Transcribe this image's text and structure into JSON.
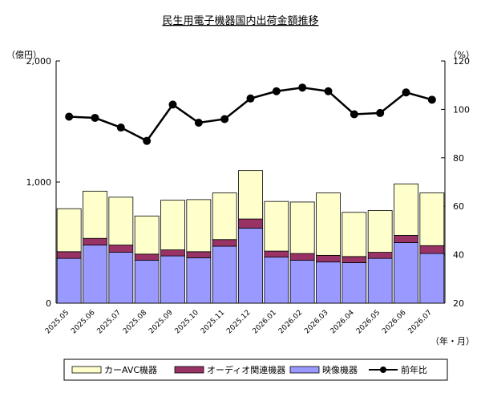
{
  "chart_data": {
    "type": "bar",
    "title": "民生用電子機器国内出荷金額推移",
    "y_left_unit": "（億円）",
    "y_right_unit": "（%）",
    "x_unit": "（年・月）",
    "categories": [
      "2025.05",
      "2025.06",
      "2025.07",
      "2025.08",
      "2025.09",
      "2025.10",
      "2025.11",
      "2025.12",
      "2026.01",
      "2026.02",
      "2026.03",
      "2026.04",
      "2026.05",
      "2026.06",
      "2026.07"
    ],
    "stacked": true,
    "ylim_left": [
      0,
      2000
    ],
    "yticks_left": [
      "0",
      "1,000",
      "2,000"
    ],
    "ylim_right": [
      20,
      120
    ],
    "yticks_right": [
      "20",
      "40",
      "60",
      "80",
      "100",
      "120"
    ],
    "series": [
      {
        "name": "映像機器",
        "kind": "bar",
        "color": "#9999ff",
        "values": [
          370,
          480,
          420,
          355,
          390,
          375,
          470,
          620,
          380,
          355,
          340,
          335,
          370,
          500,
          410
        ]
      },
      {
        "name": "オーディオ関連機器",
        "kind": "bar",
        "color": "#993366",
        "values": [
          55,
          55,
          60,
          50,
          50,
          50,
          55,
          75,
          50,
          55,
          55,
          50,
          50,
          60,
          65
        ]
      },
      {
        "name": "カーAVC機器",
        "kind": "bar",
        "color": "#ffffcc",
        "values": [
          355,
          390,
          395,
          315,
          410,
          430,
          385,
          400,
          410,
          425,
          515,
          365,
          345,
          425,
          435
        ]
      },
      {
        "name": "前年比",
        "kind": "line",
        "axis": "right",
        "color": "#000000",
        "values": [
          97,
          96.5,
          92.5,
          87,
          102,
          94.5,
          96,
          104.5,
          107.5,
          109,
          107.5,
          98,
          98.5,
          107,
          104
        ]
      }
    ],
    "legend_position": "bottom",
    "legend_order": [
      "カーAVC機器",
      "オーディオ関連機器",
      "映像機器",
      "前年比"
    ],
    "grid": false
  }
}
